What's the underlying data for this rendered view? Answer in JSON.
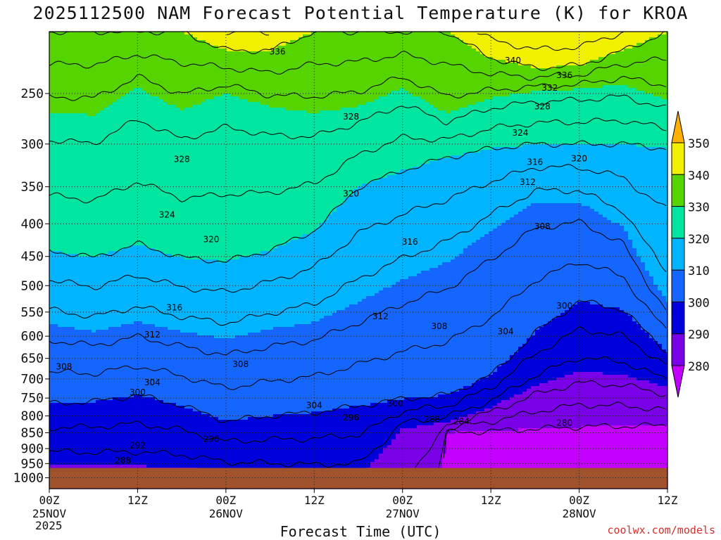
{
  "title": "2025112500 NAM Forecast Potential Temperature (K) for KROA",
  "credit": "coolwx.com/models",
  "chart_data": {
    "type": "heatmap",
    "title": "2025112500 NAM Forecast Potential Temperature (K) for KROA",
    "xlabel": "Forecast Time (UTC)",
    "ylabel": "",
    "x_ticks": [
      {
        "hour": 0,
        "label": "00Z",
        "sub": "25NOV"
      },
      {
        "hour": 12,
        "label": "12Z",
        "sub": ""
      },
      {
        "hour": 24,
        "label": "00Z",
        "sub": "26NOV"
      },
      {
        "hour": 36,
        "label": "12Z",
        "sub": ""
      },
      {
        "hour": 48,
        "label": "00Z",
        "sub": "27NOV"
      },
      {
        "hour": 60,
        "label": "12Z",
        "sub": ""
      },
      {
        "hour": 72,
        "label": "00Z",
        "sub": "28NOV"
      },
      {
        "hour": 84,
        "label": "12Z",
        "sub": ""
      }
    ],
    "year_label": "2025",
    "xlim": [
      0,
      84
    ],
    "ylim_hpa": [
      1000,
      200
    ],
    "y_scale": "log",
    "y_ticks": [
      250,
      300,
      350,
      400,
      450,
      500,
      550,
      600,
      650,
      700,
      750,
      800,
      850,
      900,
      950,
      1000
    ],
    "grid": true,
    "colorbar": {
      "position": "right",
      "levels": [
        280,
        290,
        300,
        310,
        320,
        330,
        340,
        350
      ],
      "colors": [
        "#c300ff",
        "#7a00e8",
        "#0000dd",
        "#1466ff",
        "#00b4ff",
        "#00e6a0",
        "#55d400",
        "#f0f000",
        "#ffb000"
      ],
      "extend": "both"
    },
    "ground": {
      "top_hpa": 965,
      "color": "#a0522d"
    },
    "isotherm_interval_k": 4,
    "contour_labels": [
      {
        "hour": 31,
        "p": 215,
        "text": "336"
      },
      {
        "hour": 63,
        "p": 222,
        "text": "340"
      },
      {
        "hour": 70,
        "p": 234,
        "text": "336"
      },
      {
        "hour": 68,
        "p": 245,
        "text": "332"
      },
      {
        "hour": 67,
        "p": 262,
        "text": "328"
      },
      {
        "hour": 41,
        "p": 272,
        "text": "328"
      },
      {
        "hour": 64,
        "p": 288,
        "text": "324"
      },
      {
        "hour": 18,
        "p": 317,
        "text": "328"
      },
      {
        "hour": 66,
        "p": 320,
        "text": "316"
      },
      {
        "hour": 72,
        "p": 316,
        "text": "320"
      },
      {
        "hour": 65,
        "p": 344,
        "text": "312"
      },
      {
        "hour": 41,
        "p": 359,
        "text": "320"
      },
      {
        "hour": 16,
        "p": 387,
        "text": "324"
      },
      {
        "hour": 67,
        "p": 404,
        "text": "308"
      },
      {
        "hour": 22,
        "p": 423,
        "text": "320"
      },
      {
        "hour": 49,
        "p": 427,
        "text": "316"
      },
      {
        "hour": 70,
        "p": 538,
        "text": "300"
      },
      {
        "hour": 17,
        "p": 541,
        "text": "316"
      },
      {
        "hour": 45,
        "p": 559,
        "text": "312"
      },
      {
        "hour": 53,
        "p": 579,
        "text": "308"
      },
      {
        "hour": 62,
        "p": 590,
        "text": "304"
      },
      {
        "hour": 14,
        "p": 597,
        "text": "312"
      },
      {
        "hour": 2,
        "p": 670,
        "text": "308"
      },
      {
        "hour": 26,
        "p": 664,
        "text": "308"
      },
      {
        "hour": 14,
        "p": 709,
        "text": "304"
      },
      {
        "hour": 12,
        "p": 735,
        "text": "300"
      },
      {
        "hour": 36,
        "p": 770,
        "text": "304"
      },
      {
        "hour": 47,
        "p": 765,
        "text": "300"
      },
      {
        "hour": 41,
        "p": 805,
        "text": "296"
      },
      {
        "hour": 52,
        "p": 810,
        "text": "288"
      },
      {
        "hour": 56,
        "p": 816,
        "text": "284"
      },
      {
        "hour": 70,
        "p": 820,
        "text": "280"
      },
      {
        "hour": 22,
        "p": 870,
        "text": "296"
      },
      {
        "hour": 12,
        "p": 890,
        "text": "292"
      },
      {
        "hour": 10,
        "p": 940,
        "text": "288"
      }
    ],
    "thermal_profile": {
      "hours": [
        0,
        6,
        12,
        18,
        24,
        30,
        36,
        42,
        48,
        54,
        60,
        66,
        72,
        78,
        84
      ],
      "p280": [
        2000,
        2000,
        2000,
        2000,
        2000,
        2000,
        2000,
        2000,
        2000,
        850,
        845,
        838,
        832,
        830,
        828
      ],
      "p290": [
        950,
        955,
        958,
        962,
        980,
        990,
        1000,
        1000,
        838,
        818,
        775,
        718,
        682,
        690,
        720
      ],
      "p300": [
        765,
        760,
        742,
        770,
        815,
        800,
        790,
        772,
        752,
        742,
        690,
        592,
        528,
        545,
        635
      ],
      "p310": [
        575,
        590,
        570,
        590,
        605,
        585,
        570,
        530,
        490,
        460,
        410,
        370,
        370,
        405,
        530
      ],
      "p320": [
        440,
        452,
        430,
        452,
        458,
        440,
        410,
        350,
        330,
        315,
        305,
        300,
        300,
        300,
        305
      ],
      "p330": [
        268,
        270,
        245,
        265,
        250,
        262,
        268,
        262,
        245,
        268,
        254,
        248,
        246,
        242,
        255
      ],
      "p340": [
        200,
        200,
        200,
        200,
        214,
        214,
        200,
        200,
        200,
        200,
        220,
        228,
        226,
        214,
        200
      ]
    }
  }
}
